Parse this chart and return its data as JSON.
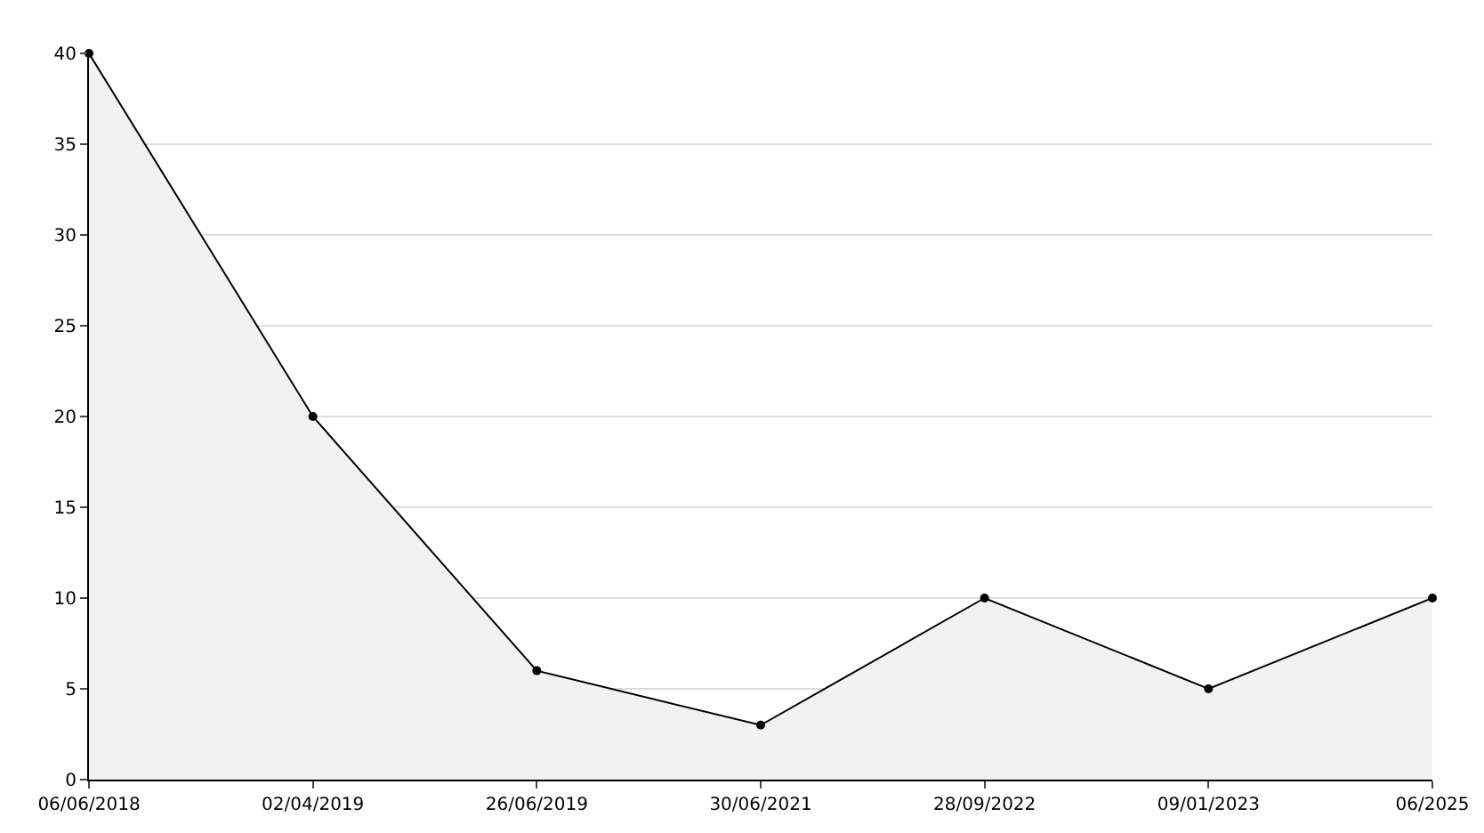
{
  "chart_data": {
    "type": "area",
    "categories": [
      "06/06/2018",
      "02/04/2019",
      "26/06/2019",
      "30/06/2021",
      "28/09/2022",
      "09/01/2023",
      "06/2025"
    ],
    "series": [
      {
        "color": "#000000",
        "values": [
          40,
          20,
          6,
          3,
          10,
          5,
          10
        ]
      }
    ],
    "ylim": [
      0,
      40
    ],
    "yticks": [
      0,
      5,
      10,
      15,
      20,
      25,
      30,
      35,
      40
    ],
    "grid": "y",
    "marker": "circle",
    "line_style": "solid"
  }
}
